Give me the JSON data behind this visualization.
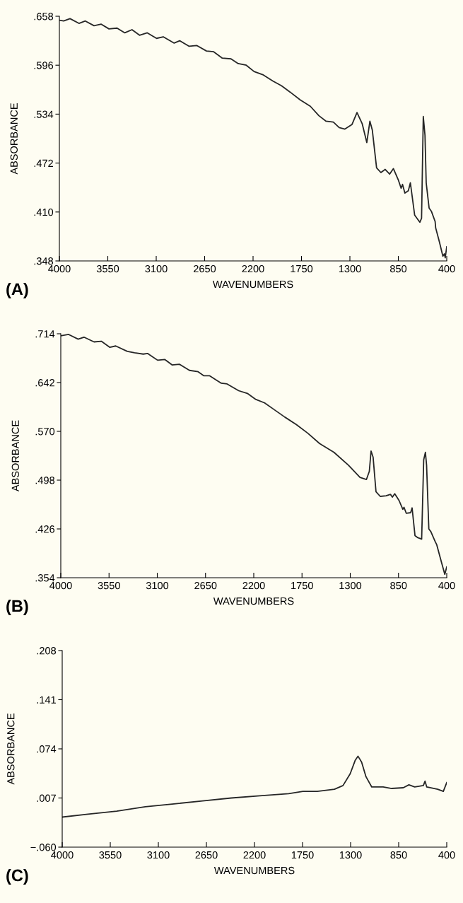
{
  "chart_data": [
    {
      "type": "line",
      "xlabel": "WAVENUMBERS",
      "ylabel": "ABSORBANCE",
      "annotations": [
        "(A)"
      ],
      "xlim": [
        4000,
        400
      ],
      "ylim": [
        0.348,
        0.658
      ],
      "xticks": [
        4000,
        3550,
        3100,
        2650,
        2200,
        1750,
        1300,
        850,
        400
      ],
      "yticks": [
        {
          "value": 0.348,
          "label": ".348"
        },
        {
          "value": 0.41,
          "label": ".410"
        },
        {
          "value": 0.472,
          "label": ".472"
        },
        {
          "value": 0.534,
          "label": ".534"
        },
        {
          "value": 0.596,
          "label": ".596"
        },
        {
          "value": 0.658,
          "label": ".658"
        }
      ],
      "x": [
        4000,
        3960,
        3901,
        3818,
        3759,
        3678,
        3611,
        3539,
        3464,
        3392,
        3325,
        3255,
        3183,
        3097,
        3035,
        2933,
        2882,
        2794,
        2724,
        2633,
        2566,
        2486,
        2405,
        2338,
        2263,
        2191,
        2110,
        2017,
        1936,
        1856,
        1762,
        1668,
        1588,
        1521,
        1454,
        1400,
        1347,
        1280,
        1234,
        1186,
        1143,
        1114,
        1092,
        1052,
        1012,
        972,
        931,
        896,
        851,
        824,
        811,
        789,
        757,
        738,
        698,
        650,
        634,
        618,
        602,
        591,
        564,
        543,
        508,
        503,
        468,
        436,
        422,
        414,
        400
      ],
      "series": [
        {
          "color": "#262626",
          "values": [
            0.653,
            0.652,
            0.655,
            0.649,
            0.652,
            0.646,
            0.648,
            0.642,
            0.643,
            0.637,
            0.641,
            0.634,
            0.637,
            0.63,
            0.632,
            0.624,
            0.627,
            0.62,
            0.621,
            0.614,
            0.613,
            0.605,
            0.604,
            0.598,
            0.596,
            0.588,
            0.584,
            0.576,
            0.57,
            0.562,
            0.552,
            0.544,
            0.532,
            0.525,
            0.524,
            0.517,
            0.515,
            0.521,
            0.536,
            0.522,
            0.498,
            0.525,
            0.514,
            0.466,
            0.46,
            0.464,
            0.458,
            0.465,
            0.451,
            0.44,
            0.445,
            0.434,
            0.437,
            0.447,
            0.406,
            0.397,
            0.402,
            0.531,
            0.507,
            0.447,
            0.415,
            0.411,
            0.398,
            0.39,
            0.372,
            0.354,
            0.357,
            0.352,
            0.366
          ]
        }
      ]
    },
    {
      "type": "line",
      "xlabel": "WAVENUMBERS",
      "ylabel": "ABSORBANCE",
      "annotations": [
        "(B)"
      ],
      "xlim": [
        4000,
        400
      ],
      "ylim": [
        0.354,
        0.714
      ],
      "xticks": [
        4000,
        3550,
        3100,
        2650,
        2200,
        1750,
        1300,
        850,
        400
      ],
      "yticks": [
        {
          "value": 0.354,
          "label": ".354"
        },
        {
          "value": 0.426,
          "label": ".426"
        },
        {
          "value": 0.498,
          "label": ".498"
        },
        {
          "value": 0.57,
          "label": ".570"
        },
        {
          "value": 0.642,
          "label": ".642"
        },
        {
          "value": 0.714,
          "label": ".714"
        }
      ],
      "x": [
        4000,
        3927,
        3838,
        3784,
        3690,
        3622,
        3542,
        3488,
        3380,
        3312,
        3231,
        3191,
        3097,
        3029,
        2962,
        2894,
        2800,
        2719,
        2665,
        2611,
        2503,
        2449,
        2341,
        2260,
        2180,
        2099,
        2018,
        1910,
        1802,
        1694,
        1586,
        1451,
        1317,
        1209,
        1149,
        1122,
        1106,
        1087,
        1060,
        1020,
        966,
        925,
        907,
        885,
        845,
        810,
        799,
        777,
        737,
        723,
        696,
        669,
        634,
        615,
        599,
        588,
        567,
        548,
        507,
        494,
        453,
        418,
        400
      ],
      "series": [
        {
          "color": "#262626",
          "values": [
            0.711,
            0.713,
            0.706,
            0.709,
            0.702,
            0.703,
            0.694,
            0.696,
            0.688,
            0.686,
            0.684,
            0.685,
            0.675,
            0.676,
            0.668,
            0.669,
            0.66,
            0.658,
            0.652,
            0.652,
            0.641,
            0.64,
            0.63,
            0.626,
            0.617,
            0.612,
            0.603,
            0.591,
            0.58,
            0.567,
            0.552,
            0.539,
            0.52,
            0.502,
            0.499,
            0.511,
            0.541,
            0.532,
            0.481,
            0.474,
            0.475,
            0.477,
            0.473,
            0.478,
            0.468,
            0.455,
            0.458,
            0.449,
            0.45,
            0.457,
            0.416,
            0.413,
            0.411,
            0.528,
            0.539,
            0.52,
            0.426,
            0.422,
            0.407,
            0.403,
            0.379,
            0.359,
            0.37
          ]
        }
      ]
    },
    {
      "type": "line",
      "xlabel": "WAVENUMBERS",
      "ylabel": "ABSORBANCE",
      "annotations": [
        "(C)"
      ],
      "xlim": [
        4000,
        400
      ],
      "ylim": [
        -0.06,
        0.208
      ],
      "xticks": [
        4000,
        3550,
        3100,
        2650,
        2200,
        1750,
        1300,
        850,
        400
      ],
      "yticks": [
        {
          "value": -0.06,
          "label": "−.060"
        },
        {
          "value": 0.007,
          "label": ".007"
        },
        {
          "value": 0.074,
          "label": ".074"
        },
        {
          "value": 0.141,
          "label": ".141"
        },
        {
          "value": 0.208,
          "label": ".208"
        }
      ],
      "x": [
        4000,
        3759,
        3490,
        3222,
        2954,
        2685,
        2417,
        2149,
        1880,
        1746,
        1612,
        1451,
        1371,
        1304,
        1258,
        1231,
        1197,
        1156,
        1102,
        995,
        915,
        807,
        754,
        700,
        619,
        603,
        587,
        485,
        432,
        400
      ],
      "series": [
        {
          "color": "#262626",
          "values": [
            -0.019,
            -0.015,
            -0.011,
            -0.005,
            -0.001,
            0.003,
            0.007,
            0.01,
            0.013,
            0.016,
            0.016,
            0.019,
            0.024,
            0.04,
            0.058,
            0.064,
            0.056,
            0.036,
            0.022,
            0.022,
            0.02,
            0.021,
            0.025,
            0.022,
            0.024,
            0.03,
            0.022,
            0.019,
            0.016,
            0.028
          ]
        }
      ]
    }
  ]
}
